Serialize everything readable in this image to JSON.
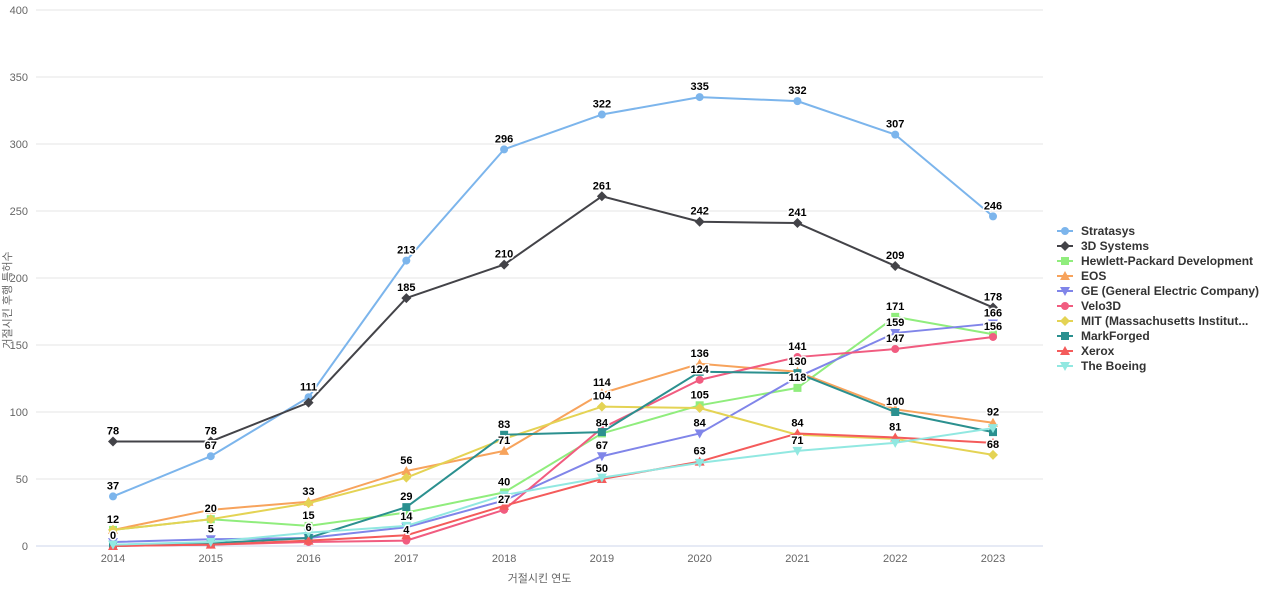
{
  "chart_data": {
    "type": "line",
    "title": "",
    "xlabel": "거절시킨 연도",
    "ylabel": "거절시킨 후행 특허수",
    "x": [
      2014,
      2015,
      2016,
      2017,
      2018,
      2019,
      2020,
      2021,
      2022,
      2023
    ],
    "y_ticks": [
      0,
      50,
      100,
      150,
      200,
      250,
      300,
      350,
      400
    ],
    "ylim": [
      0,
      400
    ],
    "grid": true,
    "legend_position": "right-middle",
    "colors": {
      "grid_line": "#e6e6e6",
      "axis_line": "#ccd6eb",
      "tick_text": "#666666",
      "data_label": "#000000"
    },
    "series": [
      {
        "name": "Stratasys",
        "color": "#7cb5ec",
        "marker": "circle",
        "values": [
          37,
          67,
          111,
          213,
          296,
          322,
          335,
          332,
          307,
          246
        ],
        "label_shown": [
          true,
          true,
          true,
          true,
          true,
          true,
          true,
          true,
          true,
          true
        ]
      },
      {
        "name": "3D Systems",
        "color": "#434348",
        "marker": "diamond",
        "values": [
          78,
          78,
          107,
          185,
          210,
          261,
          242,
          241,
          209,
          178
        ],
        "label_shown": [
          true,
          true,
          false,
          true,
          true,
          true,
          true,
          true,
          true,
          true
        ]
      },
      {
        "name": "Hewlett-Packard Development",
        "color": "#90ed7d",
        "marker": "square",
        "values": [
          12,
          20,
          15,
          25,
          40,
          84,
          105,
          118,
          171,
          158
        ],
        "label_shown": [
          false,
          true,
          true,
          false,
          true,
          true,
          true,
          true,
          true,
          false
        ]
      },
      {
        "name": "EOS",
        "color": "#f7a35c",
        "marker": "triangle",
        "values": [
          12,
          27,
          33,
          56,
          71,
          114,
          136,
          130,
          102,
          92
        ],
        "label_shown": [
          true,
          false,
          true,
          true,
          true,
          true,
          true,
          true,
          false,
          true
        ]
      },
      {
        "name": "GE (General Electric Company)",
        "color": "#8085e9",
        "marker": "triangle-down",
        "values": [
          3,
          5,
          6,
          14,
          34,
          67,
          84,
          126,
          159,
          166
        ],
        "label_shown": [
          false,
          true,
          false,
          true,
          false,
          true,
          true,
          false,
          true,
          true
        ]
      },
      {
        "name": "Velo3D",
        "color": "#f15c80",
        "marker": "circle",
        "values": [
          0,
          1,
          3,
          4,
          27,
          88,
          124,
          141,
          147,
          156
        ],
        "label_shown": [
          false,
          false,
          false,
          true,
          true,
          false,
          true,
          true,
          true,
          true
        ]
      },
      {
        "name": "MIT (Massachusetts Institut...",
        "color": "#e4d354",
        "marker": "diamond",
        "values": [
          12,
          20,
          32,
          51,
          80,
          104,
          103,
          83,
          80,
          68
        ],
        "label_shown": [
          false,
          false,
          false,
          false,
          false,
          true,
          false,
          false,
          false,
          true
        ]
      },
      {
        "name": "MarkForged",
        "color": "#2b908f",
        "marker": "square",
        "values": [
          0,
          2,
          6,
          29,
          83,
          85,
          130,
          129,
          100,
          85
        ],
        "label_shown": [
          true,
          false,
          true,
          true,
          true,
          false,
          false,
          false,
          true,
          false
        ]
      },
      {
        "name": "Xerox",
        "color": "#f45b5b",
        "marker": "triangle",
        "values": [
          0,
          1,
          4,
          8,
          30,
          50,
          63,
          84,
          81,
          77
        ],
        "label_shown": [
          false,
          false,
          false,
          false,
          false,
          true,
          true,
          true,
          true,
          false
        ]
      },
      {
        "name": "The Boeing",
        "color": "#91e8e1",
        "marker": "triangle-down",
        "values": [
          1,
          3,
          10,
          15,
          38,
          51,
          62,
          71,
          77,
          88
        ],
        "label_shown": [
          false,
          false,
          false,
          false,
          false,
          false,
          false,
          true,
          false,
          false
        ]
      }
    ]
  }
}
